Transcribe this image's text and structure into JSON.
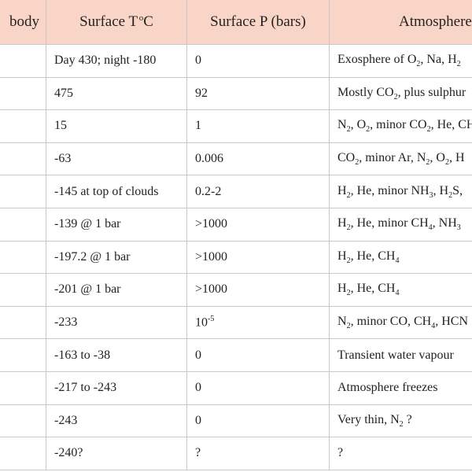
{
  "table": {
    "headers": {
      "body": "body",
      "temp_prefix": "Surface T",
      "temp_degree": "o",
      "temp_unit": "C",
      "pressure": "Surface P (bars)",
      "atmosphere": "Atmosphere"
    },
    "rows": [
      {
        "temp": "Day 430; night -180",
        "pressure": "0",
        "atm": [
          [
            "Exosphere of O",
            ""
          ],
          [
            "2",
            "sub"
          ],
          [
            ", Na, H",
            ""
          ],
          [
            "2",
            "sub"
          ]
        ]
      },
      {
        "temp": "475",
        "pressure": "92",
        "atm": [
          [
            "Mostly CO",
            ""
          ],
          [
            "2",
            "sub"
          ],
          [
            ", plus sulphur",
            ""
          ]
        ]
      },
      {
        "temp": "15",
        "pressure": "1",
        "atm": [
          [
            "N",
            ""
          ],
          [
            "2",
            "sub"
          ],
          [
            ", O",
            ""
          ],
          [
            "2",
            "sub"
          ],
          [
            ", minor CO",
            ""
          ],
          [
            "2",
            "sub"
          ],
          [
            ", He, CH",
            ""
          ]
        ]
      },
      {
        "temp": "-63",
        "pressure": "0.006",
        "atm": [
          [
            "CO",
            ""
          ],
          [
            "2",
            "sub"
          ],
          [
            ", minor Ar, N",
            ""
          ],
          [
            "2",
            "sub"
          ],
          [
            ", O",
            ""
          ],
          [
            "2",
            "sub"
          ],
          [
            ", H",
            ""
          ]
        ]
      },
      {
        "temp": "-145 at top of clouds",
        "pressure": "0.2-2",
        "atm": [
          [
            "H",
            ""
          ],
          [
            "2",
            "sub"
          ],
          [
            ", He, minor NH",
            ""
          ],
          [
            "3",
            "sub"
          ],
          [
            ", H",
            ""
          ],
          [
            "2",
            "sub"
          ],
          [
            "S,",
            ""
          ]
        ]
      },
      {
        "temp": "-139 @ 1 bar",
        "pressure": ">1000",
        "atm": [
          [
            "H",
            ""
          ],
          [
            "2",
            "sub"
          ],
          [
            ", He, minor CH",
            ""
          ],
          [
            "4",
            "sub"
          ],
          [
            ", NH",
            ""
          ],
          [
            "3",
            "sub"
          ]
        ]
      },
      {
        "temp": "-197.2 @ 1 bar",
        "pressure": ">1000",
        "atm": [
          [
            "H",
            ""
          ],
          [
            "2",
            "sub"
          ],
          [
            ", He, CH",
            ""
          ],
          [
            "4",
            "sub"
          ]
        ]
      },
      {
        "temp": "-201 @ 1 bar",
        "pressure": ">1000",
        "atm": [
          [
            "H",
            ""
          ],
          [
            "2",
            "sub"
          ],
          [
            ", He, CH",
            ""
          ],
          [
            "4",
            "sub"
          ]
        ]
      },
      {
        "temp": "-233",
        "pressure_parts": [
          [
            "10",
            ""
          ],
          [
            "-5",
            "sup"
          ]
        ],
        "atm": [
          [
            "N",
            ""
          ],
          [
            "2",
            "sub"
          ],
          [
            ", minor CO, CH",
            ""
          ],
          [
            "4",
            "sub"
          ],
          [
            ", HCN",
            ""
          ]
        ]
      },
      {
        "temp": "-163 to -38",
        "pressure": "0",
        "atm": [
          [
            "Transient water vapour",
            ""
          ]
        ]
      },
      {
        "temp": "-217 to -243",
        "pressure": "0",
        "atm": [
          [
            "Atmosphere freezes",
            ""
          ]
        ]
      },
      {
        "temp": "-243",
        "pressure": "0",
        "atm": [
          [
            "Very thin, N",
            ""
          ],
          [
            "2",
            "sub"
          ],
          [
            " ?",
            ""
          ]
        ]
      },
      {
        "temp": "-240?",
        "pressure": "?",
        "atm": [
          [
            "?",
            ""
          ]
        ]
      }
    ]
  }
}
